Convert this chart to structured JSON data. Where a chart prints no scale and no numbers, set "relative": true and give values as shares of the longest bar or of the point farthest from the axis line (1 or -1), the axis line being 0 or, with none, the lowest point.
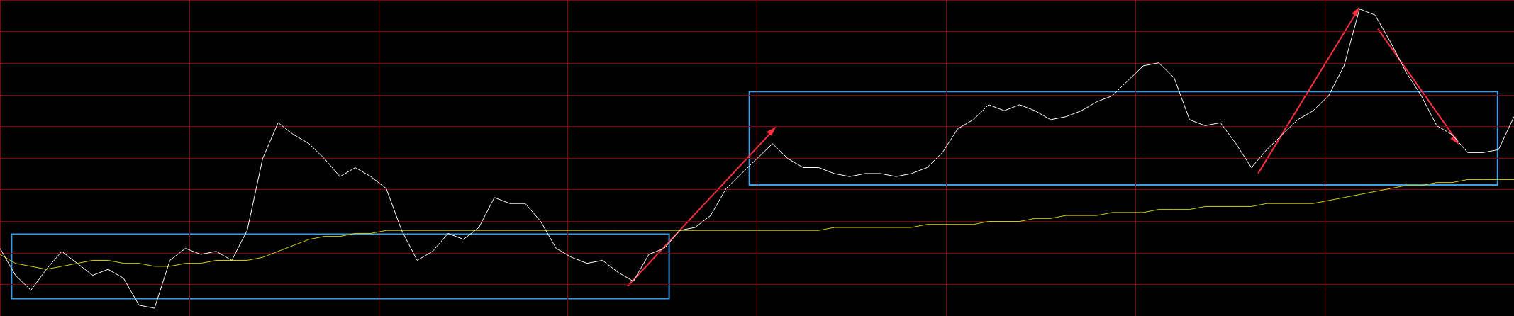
{
  "chart_data": {
    "type": "line",
    "relative": true,
    "grid": true,
    "marker": "none",
    "line_style": "solid",
    "categories": [
      null,
      null,
      null,
      null,
      null,
      null,
      null,
      null,
      null,
      null,
      null,
      null,
      null,
      null,
      null,
      null,
      null,
      null,
      null,
      null,
      null,
      null,
      null,
      null,
      null,
      null,
      null,
      null,
      null,
      null,
      null,
      null,
      null,
      null,
      null,
      null,
      null,
      null,
      null,
      null,
      null,
      null,
      null,
      null,
      null,
      null,
      null,
      null,
      null,
      null,
      null,
      null,
      null,
      null,
      null,
      null,
      null,
      null,
      null,
      null,
      null,
      null,
      null,
      null,
      null,
      null,
      null,
      null,
      null,
      null,
      null,
      null,
      null,
      null,
      null,
      null,
      null,
      null,
      null,
      null,
      null,
      null,
      null,
      null,
      null,
      null,
      null,
      null,
      null,
      null,
      null,
      null,
      null,
      null,
      null,
      null,
      null,
      null,
      null
    ],
    "series": [
      {
        "color": "#ffffff",
        "values": [
          0.2,
          0.11,
          0.06,
          0.13,
          0.19,
          0.15,
          0.11,
          0.13,
          0.1,
          0.01,
          0,
          0.16,
          0.2,
          0.18,
          0.19,
          0.16,
          0.26,
          0.5,
          0.62,
          0.58,
          0.55,
          0.5,
          0.44,
          0.47,
          0.44,
          0.4,
          0.26,
          0.16,
          0.19,
          0.25,
          0.23,
          0.27,
          0.37,
          0.35,
          0.35,
          0.29,
          0.2,
          0.17,
          0.15,
          0.16,
          0.12,
          0.09,
          0.18,
          0.2,
          0.26,
          0.27,
          0.31,
          0.4,
          0.45,
          0.5,
          0.55,
          0.5,
          0.47,
          0.47,
          0.45,
          0.44,
          0.45,
          0.45,
          0.44,
          0.45,
          0.47,
          0.52,
          0.6,
          0.63,
          0.68,
          0.66,
          0.68,
          0.66,
          0.63,
          0.64,
          0.66,
          0.69,
          0.71,
          0.76,
          0.81,
          0.82,
          0.77,
          0.63,
          0.61,
          0.62,
          0.55,
          0.47,
          0.53,
          0.58,
          0.63,
          0.66,
          0.71,
          0.81,
          1,
          0.98,
          0.89,
          0.79,
          0.71,
          0.61,
          0.58,
          0.52,
          0.52,
          0.53,
          0.64
        ]
      },
      {
        "color": "#d4d400",
        "values": [
          0.18,
          0.15,
          0.14,
          0.13,
          0.14,
          0.15,
          0.16,
          0.16,
          0.15,
          0.15,
          0.14,
          0.14,
          0.15,
          0.15,
          0.16,
          0.16,
          0.16,
          0.17,
          0.19,
          0.21,
          0.23,
          0.24,
          0.24,
          0.25,
          0.25,
          0.26,
          0.26,
          0.26,
          0.26,
          0.26,
          0.26,
          0.26,
          0.26,
          0.26,
          0.26,
          0.26,
          0.26,
          0.26,
          0.26,
          0.26,
          0.26,
          0.26,
          0.26,
          0.26,
          0.26,
          0.26,
          0.26,
          0.26,
          0.26,
          0.26,
          0.26,
          0.26,
          0.26,
          0.26,
          0.27,
          0.27,
          0.27,
          0.27,
          0.27,
          0.27,
          0.28,
          0.28,
          0.28,
          0.28,
          0.29,
          0.29,
          0.29,
          0.3,
          0.3,
          0.31,
          0.31,
          0.31,
          0.32,
          0.32,
          0.32,
          0.33,
          0.33,
          0.33,
          0.34,
          0.34,
          0.34,
          0.34,
          0.35,
          0.35,
          0.35,
          0.35,
          0.36,
          0.37,
          0.38,
          0.39,
          0.4,
          0.41,
          0.41,
          0.42,
          0.42,
          0.43,
          0.43,
          0.43,
          0.43
        ]
      }
    ]
  }
}
